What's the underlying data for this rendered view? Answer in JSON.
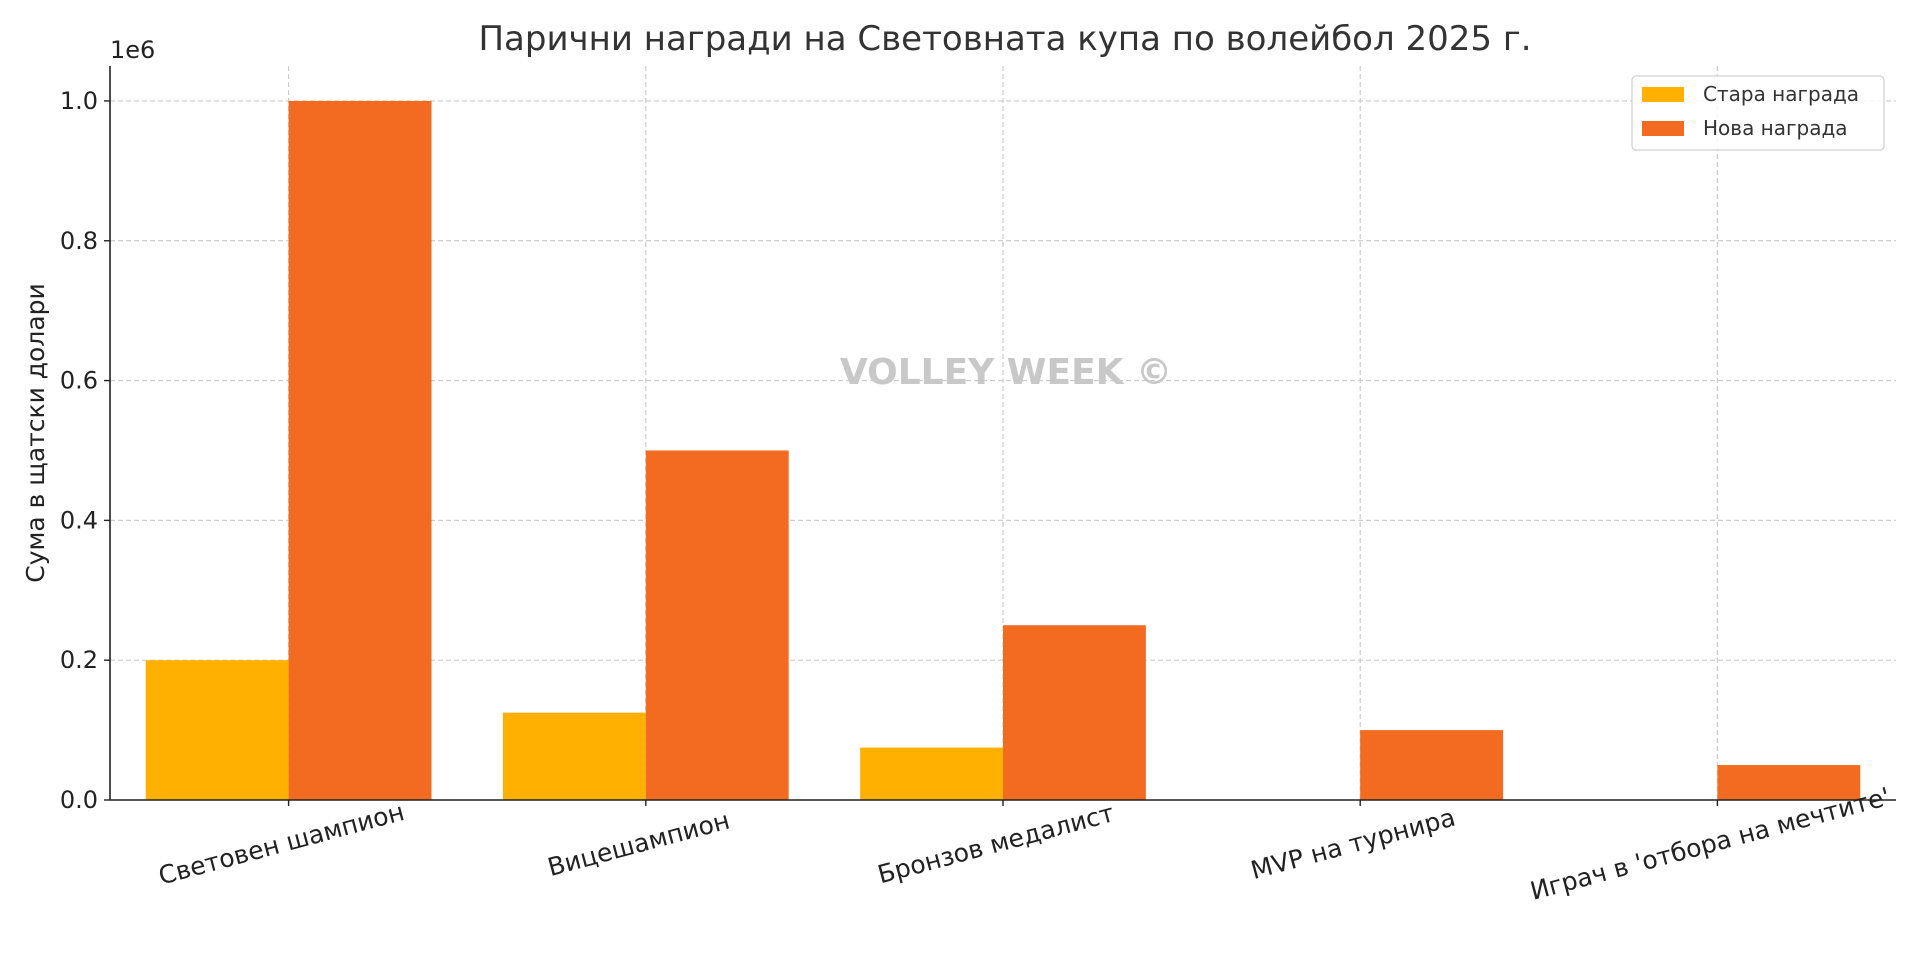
{
  "chart_data": {
    "type": "bar",
    "title": "Парични награди на Световната купа по волейбол 2025 г.",
    "xlabel": "",
    "ylabel": "Сума в щатски долари",
    "scale_label": "1e6",
    "categories": [
      "Световен шампион",
      "Вицешампион",
      "Бронзов медалист",
      "MVP на турнира",
      "Играч в 'отбора на мечтите'"
    ],
    "series": [
      {
        "name": "Стара награда",
        "color": "#FFB000",
        "values": [
          200000,
          125000,
          75000,
          0,
          0
        ]
      },
      {
        "name": "Нова награда",
        "color": "#F26B21",
        "values": [
          1000000,
          500000,
          250000,
          100000,
          50000
        ]
      }
    ],
    "ylim": [
      0,
      1050000
    ],
    "yticks": [
      0,
      200000,
      400000,
      600000,
      800000,
      1000000
    ],
    "ytick_labels": [
      "0.0",
      "0.2",
      "0.4",
      "0.6",
      "0.8",
      "1.0"
    ],
    "grid": true,
    "legend_position": "top-right",
    "watermark": "VOLLEY WEEK ©"
  }
}
